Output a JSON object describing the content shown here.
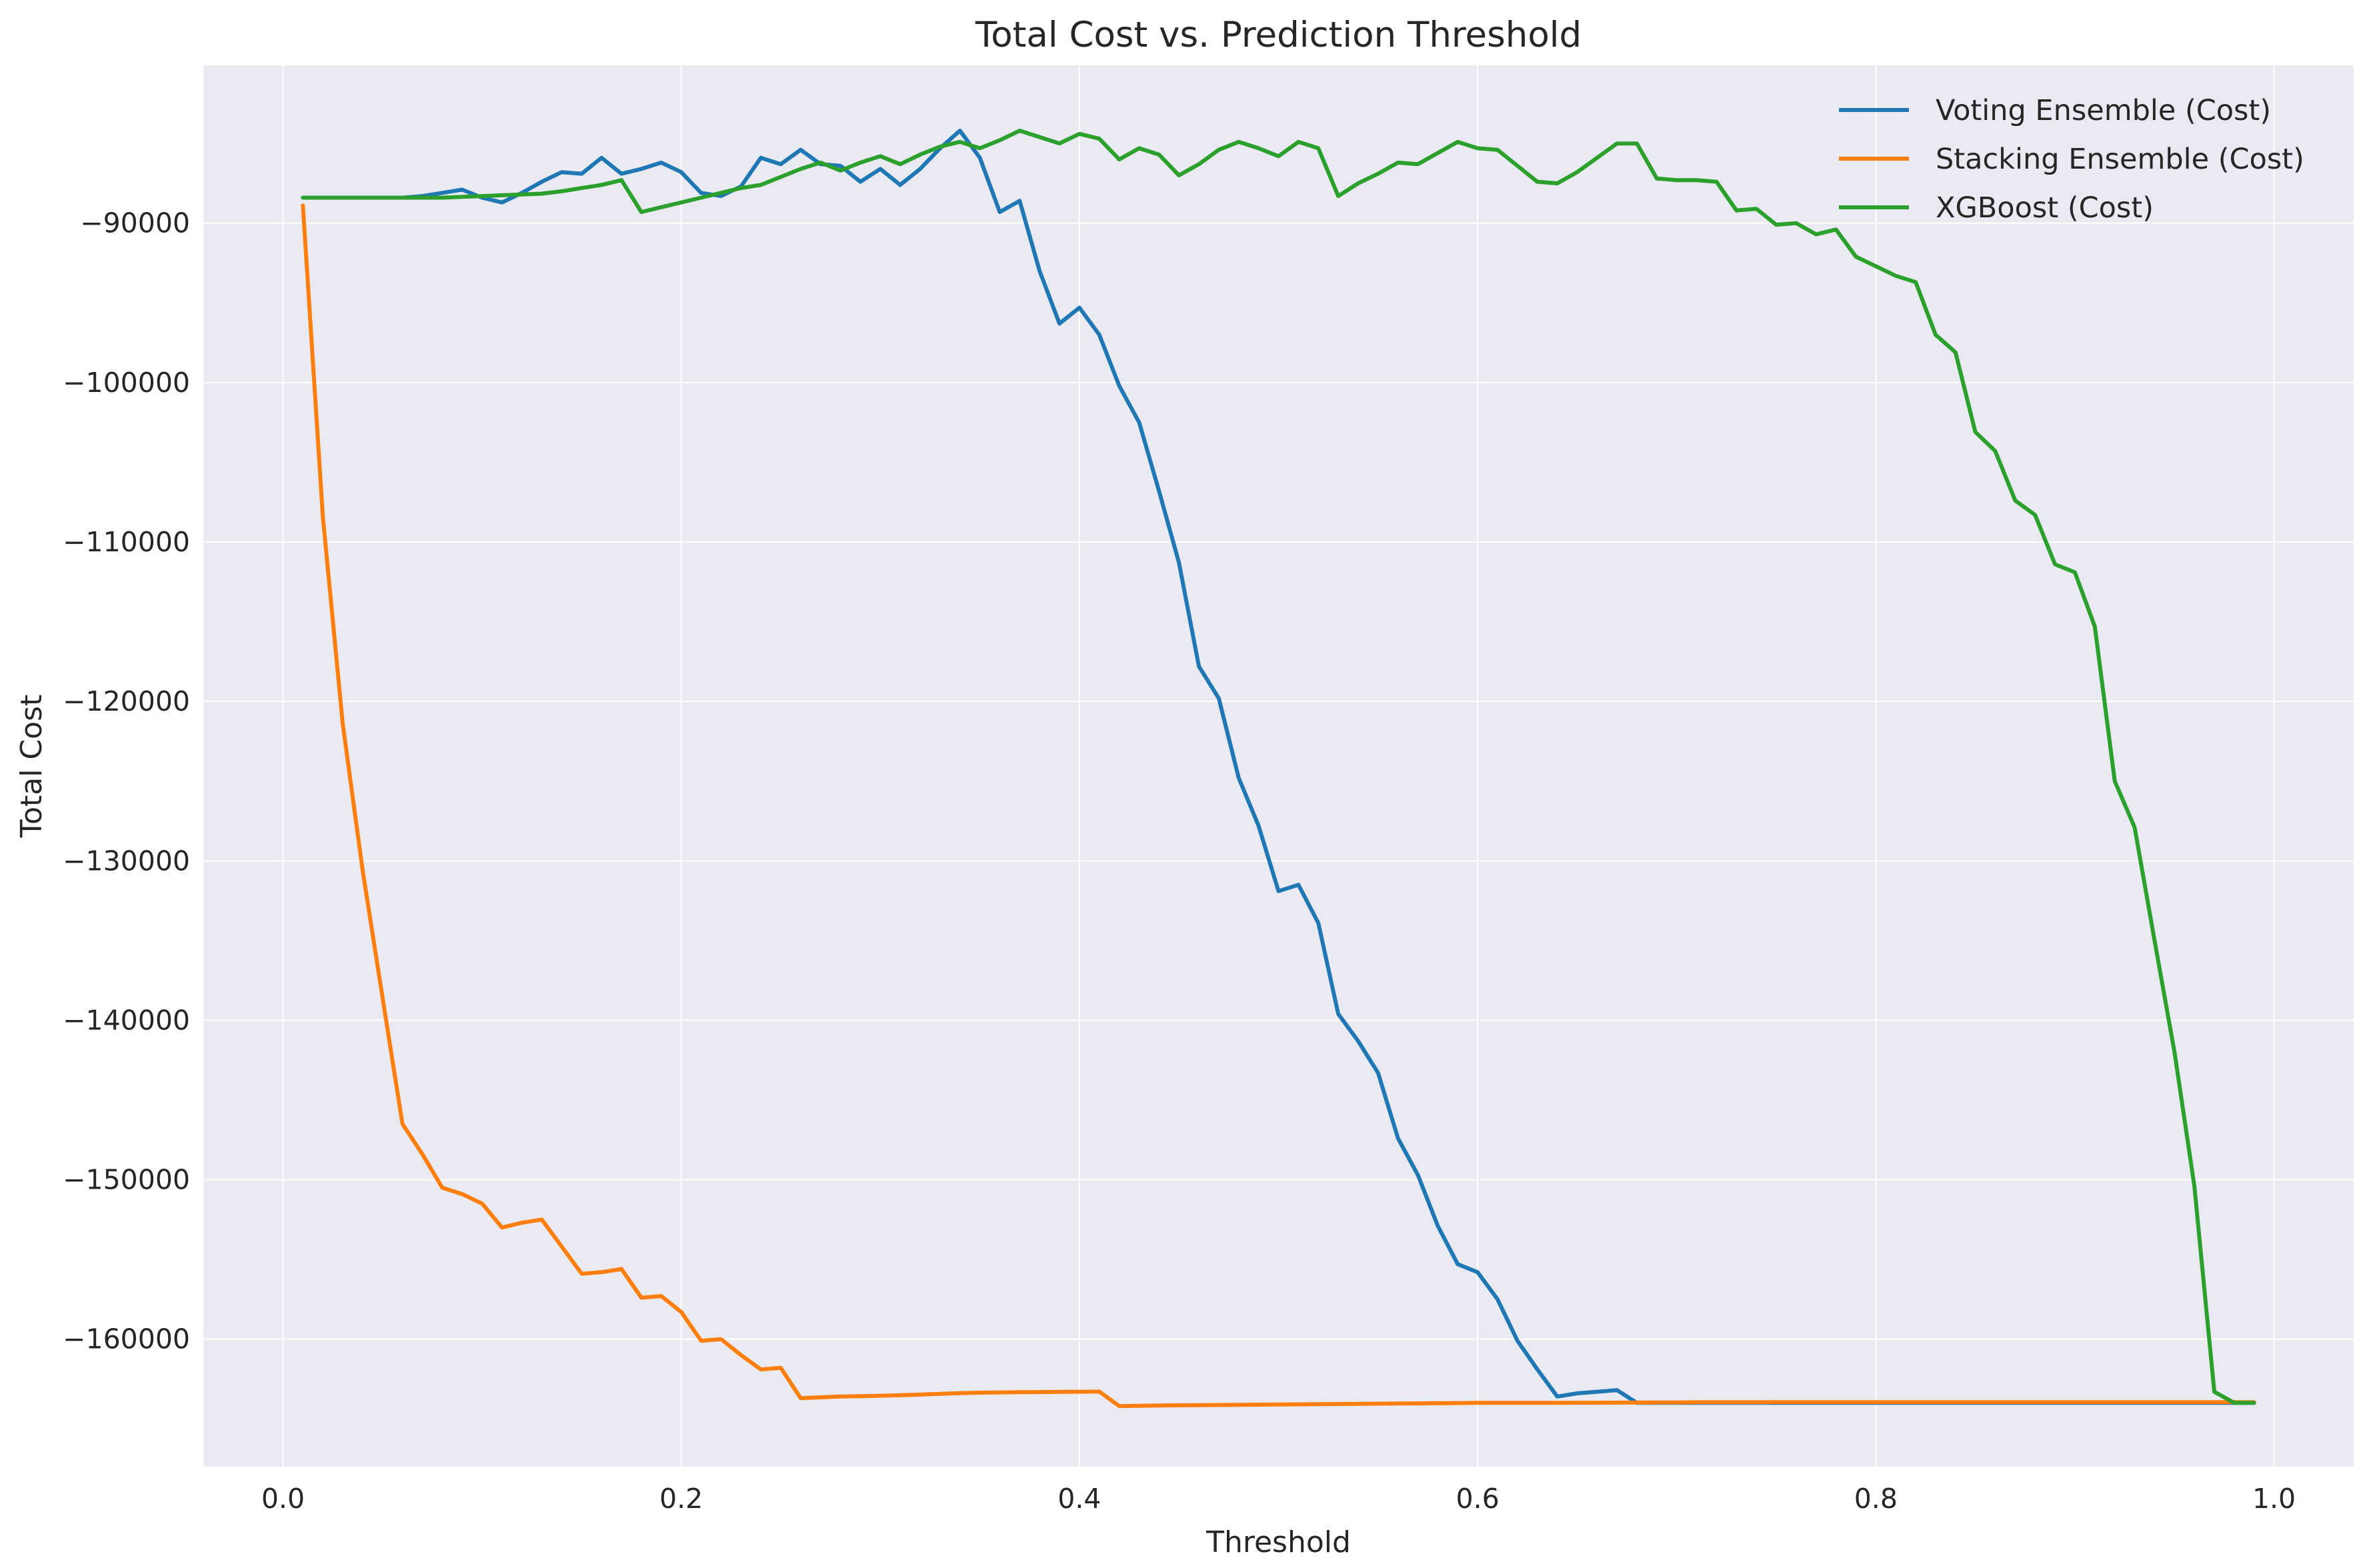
{
  "chart_data": {
    "type": "line",
    "title": "Total Cost vs. Prediction Threshold",
    "xlabel": "Threshold",
    "ylabel": "Total Cost",
    "xlim": [
      -0.04,
      1.04
    ],
    "ylim": [
      -168000,
      -80100
    ],
    "xticks": [
      0.0,
      0.2,
      0.4,
      0.6,
      0.8,
      1.0
    ],
    "xtick_labels": [
      "0.0",
      "0.2",
      "0.4",
      "0.6",
      "0.8",
      "1.0"
    ],
    "yticks": [
      -90000,
      -100000,
      -110000,
      -120000,
      -130000,
      -140000,
      -150000,
      -160000
    ],
    "ytick_labels": [
      "−90000",
      "−100000",
      "−110000",
      "−120000",
      "−130000",
      "−140000",
      "−150000",
      "−160000"
    ],
    "grid": true,
    "legend_position": "top-right",
    "background": "#eaeaf2",
    "x": [
      0.01,
      0.02,
      0.03,
      0.04,
      0.05,
      0.06,
      0.07,
      0.08,
      0.09,
      0.1,
      0.11,
      0.12,
      0.13,
      0.14,
      0.15,
      0.16,
      0.17,
      0.18,
      0.19,
      0.2,
      0.21,
      0.22,
      0.23,
      0.24,
      0.25,
      0.26,
      0.27,
      0.28,
      0.29,
      0.3,
      0.31,
      0.32,
      0.33,
      0.34,
      0.35,
      0.36,
      0.37,
      0.38,
      0.39,
      0.4,
      0.41,
      0.42,
      0.43,
      0.44,
      0.45,
      0.46,
      0.47,
      0.48,
      0.49,
      0.5,
      0.51,
      0.52,
      0.53,
      0.54,
      0.55,
      0.56,
      0.57,
      0.58,
      0.59,
      0.6,
      0.61,
      0.62,
      0.63,
      0.64,
      0.65,
      0.66,
      0.67,
      0.68,
      0.69,
      0.7,
      0.71,
      0.72,
      0.73,
      0.74,
      0.75,
      0.76,
      0.77,
      0.78,
      0.79,
      0.8,
      0.81,
      0.82,
      0.83,
      0.84,
      0.85,
      0.86,
      0.87,
      0.88,
      0.89,
      0.9,
      0.91,
      0.92,
      0.93,
      0.94,
      0.95,
      0.96,
      0.97,
      0.98,
      0.99
    ],
    "series": [
      {
        "name": "Voting Ensemble (Cost)",
        "color": "#1f77b4",
        "values": [
          -88400,
          -88400,
          -88400,
          -88400,
          -88400,
          -88400,
          -88300,
          -88100,
          -87900,
          -88400,
          -88700,
          -88100,
          -87400,
          -86800,
          -86900,
          -85900,
          -86900,
          -86600,
          -86200,
          -86800,
          -88100,
          -88300,
          -87700,
          -85900,
          -86300,
          -85400,
          -86300,
          -86400,
          -87400,
          -86600,
          -87600,
          -86600,
          -85300,
          -84200,
          -85900,
          -89300,
          -88600,
          -93000,
          -96300,
          -95300,
          -97000,
          -100200,
          -102500,
          -106800,
          -111300,
          -117800,
          -119800,
          -124800,
          -127800,
          -131900,
          -131500,
          -133900,
          -139600,
          -141300,
          -143300,
          -147400,
          -149700,
          -152900,
          -155300,
          -155800,
          -157500,
          -160100,
          -161900,
          -163600,
          -163400,
          -163300,
          -163200,
          -164000,
          -164000,
          -164000,
          -164000,
          -164000,
          -164000,
          -164000,
          -164000,
          -164000,
          -164000,
          -164000,
          -164000,
          -164000,
          -164000,
          -164000,
          -164000,
          -164000,
          -164000,
          -164000,
          -164000,
          -164000,
          -164000,
          -164000,
          -164000,
          -164000,
          -164000,
          -164000,
          -164000,
          -164000,
          -164000,
          -164000,
          -164000
        ]
      },
      {
        "name": "Stacking Ensemble (Cost)",
        "color": "#ff7f0e",
        "values": [
          -88900,
          -108400,
          -121400,
          -130600,
          -138600,
          -146500,
          -148400,
          -150500,
          -150900,
          -151500,
          -153000,
          -152700,
          -152500,
          -154200,
          -155900,
          -155800,
          -155600,
          -157400,
          -157300,
          -158300,
          -160100,
          -160000,
          -161000,
          -161900,
          -161800,
          -163700,
          -163650,
          -163600,
          -163580,
          -163550,
          -163520,
          -163480,
          -163430,
          -163390,
          -163360,
          -163340,
          -163330,
          -163320,
          -163310,
          -163300,
          -163290,
          -164200,
          -164180,
          -164160,
          -164150,
          -164140,
          -164130,
          -164120,
          -164110,
          -164100,
          -164090,
          -164080,
          -164070,
          -164060,
          -164050,
          -164040,
          -164030,
          -164020,
          -164010,
          -164000,
          -164000,
          -164000,
          -164000,
          -164000,
          -163990,
          -163990,
          -163980,
          -163980,
          -163970,
          -163970,
          -163960,
          -163960,
          -163960,
          -163960,
          -163950,
          -163950,
          -163950,
          -163950,
          -163950,
          -163950,
          -163950,
          -163950,
          -163950,
          -163950,
          -163950,
          -163950,
          -163950,
          -163950,
          -163950,
          -163950,
          -163950,
          -163950,
          -163950,
          -163950,
          -163950,
          -163950,
          -163950,
          -163950,
          -163950
        ]
      },
      {
        "name": "XGBoost (Cost)",
        "color": "#2ca02c",
        "values": [
          -88400,
          -88400,
          -88400,
          -88400,
          -88400,
          -88400,
          -88400,
          -88400,
          -88350,
          -88300,
          -88250,
          -88200,
          -88150,
          -88000,
          -87800,
          -87600,
          -87300,
          -89300,
          -89000,
          -88700,
          -88400,
          -88100,
          -87800,
          -87600,
          -87100,
          -86600,
          -86200,
          -86700,
          -86200,
          -85800,
          -86300,
          -85700,
          -85200,
          -84900,
          -85300,
          -84800,
          -84200,
          -84600,
          -85000,
          -84400,
          -84700,
          -86000,
          -85300,
          -85700,
          -87000,
          -86300,
          -85400,
          -84900,
          -85300,
          -85800,
          -84900,
          -85300,
          -88300,
          -87500,
          -86900,
          -86200,
          -86300,
          -85600,
          -84900,
          -85300,
          -85400,
          -86400,
          -87400,
          -87500,
          -86800,
          -85900,
          -85000,
          -85000,
          -87200,
          -87300,
          -87300,
          -87400,
          -89200,
          -89100,
          -90100,
          -90000,
          -90700,
          -90400,
          -92100,
          -92700,
          -93300,
          -93700,
          -97000,
          -98100,
          -103100,
          -104300,
          -107400,
          -108300,
          -111400,
          -111900,
          -115300,
          -125000,
          -127900,
          -135000,
          -142000,
          -150400,
          -163300,
          -164000,
          -164000
        ]
      }
    ]
  }
}
